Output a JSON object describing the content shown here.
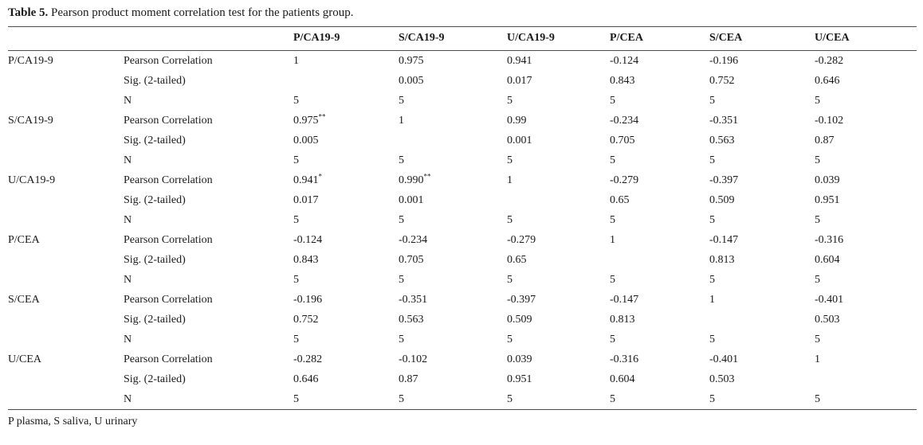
{
  "caption": {
    "label": "Table 5.",
    "text": " Pearson product moment correlation test for the patients group."
  },
  "footnote": "P plasma, S saliva, U urinary",
  "colors": {
    "text": "#1a1a1a",
    "rule": "#4d4d4d",
    "background": "#ffffff"
  },
  "table": {
    "header": [
      "P/CA19-9",
      "S/CA19-9",
      "U/CA19-9",
      "P/CEA",
      "S/CEA",
      "U/CEA"
    ],
    "stats": [
      "Pearson Correlation",
      "Sig. (2-tailed)",
      "N"
    ],
    "groups": [
      {
        "name": "P/CA19-9",
        "pearson": [
          "1",
          "0.975",
          "0.941",
          "-0.124",
          "-0.196",
          "-0.282"
        ],
        "pearson_sup": [
          "",
          "",
          "",
          "",
          "",
          ""
        ],
        "sig": [
          "",
          "0.005",
          "0.017",
          "0.843",
          "0.752",
          "0.646"
        ],
        "n": [
          "5",
          "5",
          "5",
          "5",
          "5",
          "5"
        ]
      },
      {
        "name": "S/CA19-9",
        "pearson": [
          "0.975",
          "1",
          "0.99",
          "-0.234",
          "-0.351",
          "-0.102"
        ],
        "pearson_sup": [
          "**",
          "",
          "",
          "",
          "",
          ""
        ],
        "sig": [
          "0.005",
          "",
          "0.001",
          "0.705",
          "0.563",
          "0.87"
        ],
        "n": [
          "5",
          "5",
          "5",
          "5",
          "5",
          "5"
        ]
      },
      {
        "name": "U/CA19-9",
        "pearson": [
          "0.941",
          "0.990",
          "1",
          "-0.279",
          "-0.397",
          "0.039"
        ],
        "pearson_sup": [
          "*",
          "**",
          "",
          "",
          "",
          ""
        ],
        "sig": [
          "0.017",
          "0.001",
          "",
          "0.65",
          "0.509",
          "0.951"
        ],
        "n": [
          "5",
          "5",
          "5",
          "5",
          "5",
          "5"
        ]
      },
      {
        "name": "P/CEA",
        "pearson": [
          "-0.124",
          "-0.234",
          "-0.279",
          "1",
          "-0.147",
          "-0.316"
        ],
        "pearson_sup": [
          "",
          "",
          "",
          "",
          "",
          ""
        ],
        "sig": [
          "0.843",
          "0.705",
          "0.65",
          "",
          "0.813",
          "0.604"
        ],
        "n": [
          "5",
          "5",
          "5",
          "5",
          "5",
          "5"
        ]
      },
      {
        "name": "S/CEA",
        "pearson": [
          "-0.196",
          "-0.351",
          "-0.397",
          "-0.147",
          "1",
          "-0.401"
        ],
        "pearson_sup": [
          "",
          "",
          "",
          "",
          "",
          ""
        ],
        "sig": [
          "0.752",
          "0.563",
          "0.509",
          "0.813",
          "",
          "0.503"
        ],
        "n": [
          "5",
          "5",
          "5",
          "5",
          "5",
          "5"
        ]
      },
      {
        "name": "U/CEA",
        "pearson": [
          "-0.282",
          "-0.102",
          "0.039",
          "-0.316",
          "-0.401",
          "1"
        ],
        "pearson_sup": [
          "",
          "",
          "",
          "",
          "",
          ""
        ],
        "sig": [
          "0.646",
          "0.87",
          "0.951",
          "0.604",
          "0.503",
          ""
        ],
        "n": [
          "5",
          "5",
          "5",
          "5",
          "5",
          "5"
        ]
      }
    ]
  }
}
